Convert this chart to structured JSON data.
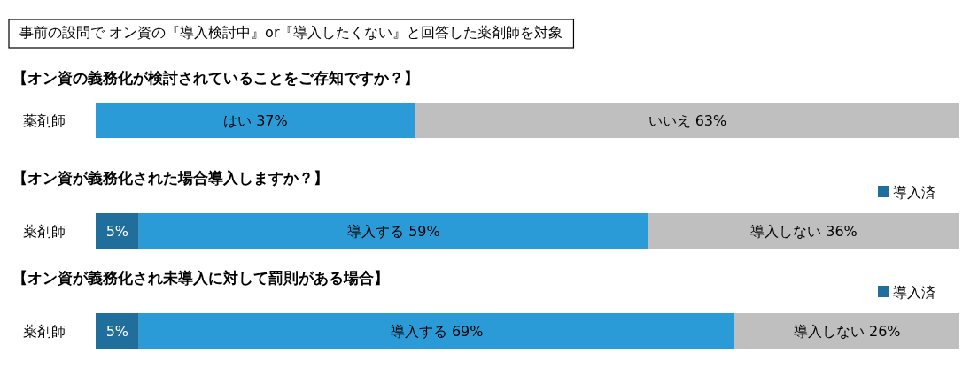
{
  "chart_data": [
    {
      "type": "bar",
      "orientation": "horizontal",
      "stacked": true,
      "tick_labels": "y",
      "xlim": [
        0,
        100
      ],
      "annotations": [
        "事前の設問で オン資の『導入検討中』or『導入したくない』と回答した薬剤師を対象"
      ],
      "title": "【オン資の義務化が検討されていることをご存知ですか？】",
      "categories": [
        "薬剤師"
      ],
      "series": [
        {
          "color": "#2b9bd8",
          "values": [
            37
          ],
          "value_labels": [
            "はい 37%"
          ]
        },
        {
          "color": "#bfbfbf",
          "values": [
            63
          ],
          "value_labels": [
            "いいえ 63%"
          ]
        }
      ]
    },
    {
      "type": "bar",
      "orientation": "horizontal",
      "stacked": true,
      "tick_labels": "y",
      "xlim": [
        0,
        100
      ],
      "legend": "top right",
      "title": "【オン資が義務化された場合導入しますか？】",
      "categories": [
        "薬剤師"
      ],
      "series": [
        {
          "name": "導入済",
          "color": "#1f6e9c",
          "values": [
            5
          ],
          "value_labels": [
            "5%"
          ]
        },
        {
          "color": "#2b9bd8",
          "values": [
            59
          ],
          "value_labels": [
            "導入する 59%"
          ]
        },
        {
          "color": "#bfbfbf",
          "values": [
            36
          ],
          "value_labels": [
            "導入しない 36%"
          ]
        }
      ]
    },
    {
      "type": "bar",
      "orientation": "horizontal",
      "stacked": true,
      "tick_labels": "y",
      "xlim": [
        0,
        100
      ],
      "legend": "top right",
      "title": "【オン資が義務化され未導入に対して罰則がある場合】",
      "categories": [
        "薬剤師"
      ],
      "series": [
        {
          "name": "導入済",
          "color": "#1f6e9c",
          "values": [
            5
          ],
          "value_labels": [
            "5%"
          ]
        },
        {
          "color": "#2b9bd8",
          "values": [
            69
          ],
          "value_labels": [
            "導入する 69%"
          ]
        },
        {
          "color": "#bfbfbf",
          "values": [
            26
          ],
          "value_labels": [
            "導入しない 26%"
          ]
        }
      ]
    }
  ]
}
